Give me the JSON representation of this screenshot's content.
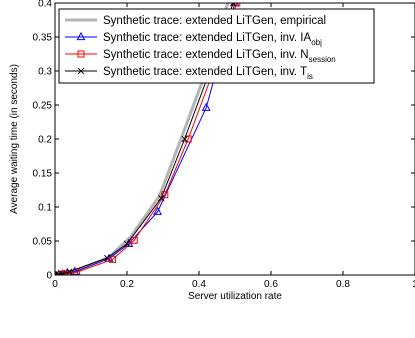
{
  "chart_data": {
    "type": "line",
    "title": "",
    "xlabel": "Server utilization rate",
    "ylabel": "Average waiting time (in seconds)",
    "xlim": [
      0,
      1
    ],
    "ylim": [
      0,
      0.4
    ],
    "x_ticks": [
      {
        "value": 0,
        "label": "0"
      },
      {
        "value": 0.2,
        "label": "0.2"
      },
      {
        "value": 0.4,
        "label": "0.4"
      },
      {
        "value": 0.6,
        "label": "0.6"
      },
      {
        "value": 0.8,
        "label": "0.8"
      },
      {
        "value": 1,
        "label": "1"
      }
    ],
    "y_ticks": [
      {
        "value": 0,
        "label": "0"
      },
      {
        "value": 0.05,
        "label": "0.05"
      },
      {
        "value": 0.1,
        "label": "0.1"
      },
      {
        "value": 0.15,
        "label": "0.15"
      },
      {
        "value": 0.2,
        "label": "0.2"
      },
      {
        "value": 0.25,
        "label": "0.25"
      },
      {
        "value": 0.3,
        "label": "0.3"
      },
      {
        "value": 0.35,
        "label": "0.35"
      },
      {
        "value": 0.4,
        "label": "0.4"
      }
    ],
    "grid": false,
    "legend_position": "top-left",
    "series": [
      {
        "name": "Synthetic trace: extended LiTGen, empirical",
        "name_main": "Synthetic trace: extended LiTGen, empirical",
        "name_sub": "",
        "color": "#b4b4b4",
        "marker": "none",
        "x": [
          0,
          0.02,
          0.04,
          0.06,
          0.15,
          0.21,
          0.29,
          0.35,
          0.42,
          0.48
        ],
        "y": [
          0,
          0.002,
          0.004,
          0.007,
          0.026,
          0.056,
          0.116,
          0.2,
          0.3,
          0.4
        ]
      },
      {
        "name": "Synthetic trace: extended LiTGen, inv. IAobj",
        "name_main": "Synthetic trace: extended LiTGen, inv. IA",
        "name_sub": "obj",
        "color": "#0000ff",
        "marker": "triangle",
        "x": [
          0,
          0.01,
          0.02,
          0.035,
          0.055,
          0.15,
          0.205,
          0.285,
          0.42,
          0.5
        ],
        "y": [
          0,
          0.0005,
          0.001,
          0.003,
          0.005,
          0.024,
          0.046,
          0.093,
          0.246,
          0.4
        ]
      },
      {
        "name": "Synthetic trace: extended LiTGen, inv. Nsession",
        "name_main": "Synthetic trace: extended LiTGen, inv. N",
        "name_sub": "session",
        "color": "#ff0000",
        "marker": "square",
        "x": [
          0.005,
          0.02,
          0.03,
          0.06,
          0.16,
          0.22,
          0.305,
          0.37,
          0.44,
          0.505
        ],
        "y": [
          0,
          0.001,
          0.002,
          0.004,
          0.023,
          0.051,
          0.118,
          0.2,
          0.3,
          0.4
        ]
      },
      {
        "name": "Synthetic trace: extended LiTGen, inv. Tis",
        "name_main": "Synthetic trace: extended LiTGen, inv. T",
        "name_sub": "is",
        "color": "#000000",
        "marker": "x",
        "x": [
          0,
          0.01,
          0.02,
          0.04,
          0.145,
          0.2,
          0.295,
          0.36,
          0.43,
          0.495
        ],
        "y": [
          0,
          0.001,
          0.002,
          0.005,
          0.025,
          0.046,
          0.113,
          0.2,
          0.3,
          0.4
        ]
      }
    ]
  }
}
